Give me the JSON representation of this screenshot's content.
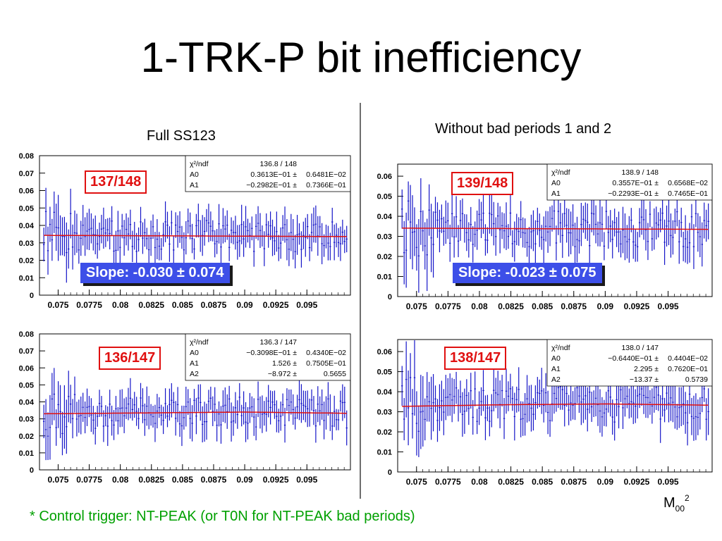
{
  "title": "1-TRK-P bit inefficiency",
  "left_label": "Full SS123",
  "right_label": "Without bad periods 1 and 2",
  "footnote": "* Control trigger: NT-PEAK (or T0N for NT-PEAK bad periods)",
  "axis_name": {
    "base": "M",
    "sub": "00",
    "sup": "2"
  },
  "colors": {
    "points": "#1515c8",
    "fit": "#e01010",
    "badge": "#e01010",
    "slope_bg": "#3d4fe8",
    "footnote": "#00a000"
  },
  "chart_data": [
    {
      "type": "scatter",
      "xlim": [
        0.0735,
        0.0985
      ],
      "ylim": [
        0,
        0.08
      ],
      "x_ticks": [
        "0.075",
        "0.0775",
        "0.08",
        "0.0825",
        "0.085",
        "0.0875",
        "0.09",
        "0.0925",
        "0.095"
      ],
      "y_ticks": [
        "0",
        "0.01",
        "0.02",
        "0.03",
        "0.04",
        "0.05",
        "0.06",
        "0.07",
        "0.08"
      ],
      "fit_line": [
        0.0343,
        0.0336
      ],
      "ndf_label": "137/148",
      "slope_label": "Slope: -0.030 ± 0.074",
      "stats": [
        {
          "name": "χ²/ndf",
          "value": "136.8  /  148",
          "error": ""
        },
        {
          "name": "A0",
          "value": "0.3613E−01 ±",
          "error": "0.6481E−02"
        },
        {
          "name": "A1",
          "value": "−0.2982E−01 ±",
          "error": "0.7366E−01"
        }
      ]
    },
    {
      "type": "scatter",
      "xlim": [
        0.0735,
        0.0985
      ],
      "ylim": [
        0,
        0.066
      ],
      "x_ticks": [
        "0.075",
        "0.0775",
        "0.08",
        "0.0825",
        "0.085",
        "0.0875",
        "0.09",
        "0.0925",
        "0.095"
      ],
      "y_ticks": [
        "0",
        "0.01",
        "0.02",
        "0.03",
        "0.04",
        "0.05",
        "0.06"
      ],
      "fit_line": [
        0.0341,
        0.0335
      ],
      "ndf_label": "139/148",
      "slope_label": "Slope: -0.023 ± 0.075",
      "stats": [
        {
          "name": "χ²/ndf",
          "value": "138.9  /  148",
          "error": ""
        },
        {
          "name": "A0",
          "value": "0.3557E−01 ±",
          "error": "0.6568E−02"
        },
        {
          "name": "A1",
          "value": "−0.2293E−01 ±",
          "error": "0.7465E−01"
        }
      ]
    },
    {
      "type": "scatter",
      "xlim": [
        0.0735,
        0.0985
      ],
      "ylim": [
        0,
        0.08
      ],
      "x_ticks": [
        "0.075",
        "0.0775",
        "0.08",
        "0.0825",
        "0.085",
        "0.0875",
        "0.09",
        "0.0925",
        "0.095"
      ],
      "y_ticks": [
        "0",
        "0.01",
        "0.02",
        "0.03",
        "0.04",
        "0.05",
        "0.06",
        "0.07",
        "0.08"
      ],
      "fit_line": [
        0.033,
        0.0335,
        0.034,
        0.0333
      ],
      "ndf_label": "136/147",
      "slope_label": "",
      "stats": [
        {
          "name": "χ²/ndf",
          "value": "136.3  /  147",
          "error": ""
        },
        {
          "name": "A0",
          "value": "−0.3098E−01 ±",
          "error": "0.4340E−02"
        },
        {
          "name": "A1",
          "value": "1.526 ±",
          "error": "0.7505E−01"
        },
        {
          "name": "A2",
          "value": "−8.972 ±",
          "error": "0.5655"
        }
      ]
    },
    {
      "type": "scatter",
      "xlim": [
        0.0735,
        0.0985
      ],
      "ylim": [
        0,
        0.066
      ],
      "x_ticks": [
        "0.075",
        "0.0775",
        "0.08",
        "0.0825",
        "0.085",
        "0.0875",
        "0.09",
        "0.0925",
        "0.095"
      ],
      "y_ticks": [
        "0",
        "0.01",
        "0.02",
        "0.03",
        "0.04",
        "0.05",
        "0.06"
      ],
      "fit_line": [
        0.0327,
        0.0335,
        0.0339,
        0.0333
      ],
      "ndf_label": "138/147",
      "slope_label": "",
      "stats": [
        {
          "name": "χ²/ndf",
          "value": "138.0  /  147",
          "error": ""
        },
        {
          "name": "A0",
          "value": "−0.6440E−01 ±",
          "error": "0.4404E−02"
        },
        {
          "name": "A1",
          "value": "2.295 ±",
          "error": "0.7620E−01"
        },
        {
          "name": "A2",
          "value": "−13.37 ±",
          "error": "0.5739"
        }
      ]
    }
  ]
}
